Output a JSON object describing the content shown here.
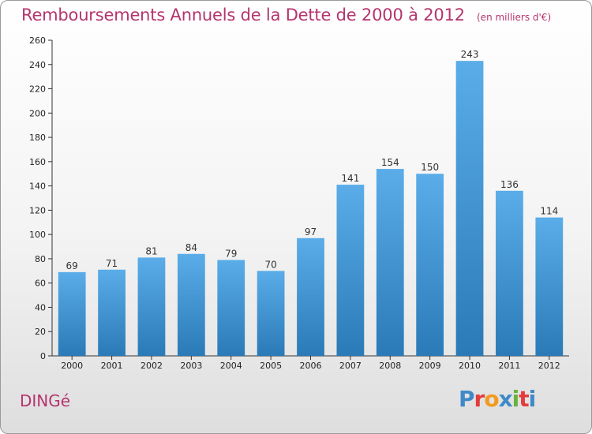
{
  "header": {
    "title": "Remboursements Annuels de la Dette de 2000 à 2012",
    "unit": "(en milliers d'€)"
  },
  "footer": {
    "commune": "DINGé",
    "logo": "Proxiti",
    "logo_colors": [
      "#3f89c8",
      "#e23c3c",
      "#f29a1f",
      "#3f89c8",
      "#67b43c",
      "#e23c3c",
      "#3f89c8"
    ]
  },
  "colors": {
    "bar_light": "#5aade8",
    "bar_dark": "#2a7ab8",
    "title": "#b5346e",
    "axis": "#333333"
  },
  "chart_data": {
    "type": "bar",
    "title": "Remboursements Annuels de la Dette de 2000 à 2012",
    "ylabel": "(en milliers d'€)",
    "categories": [
      "2000",
      "2001",
      "2002",
      "2003",
      "2004",
      "2005",
      "2006",
      "2007",
      "2008",
      "2009",
      "2010",
      "2011",
      "2012"
    ],
    "values": [
      69,
      71,
      81,
      84,
      79,
      70,
      97,
      141,
      154,
      150,
      243,
      136,
      114
    ],
    "ylim": [
      0,
      260
    ],
    "yticks": [
      0,
      20,
      40,
      60,
      80,
      100,
      120,
      140,
      160,
      180,
      200,
      220,
      240,
      260
    ],
    "grid": false,
    "data_labels": true
  }
}
